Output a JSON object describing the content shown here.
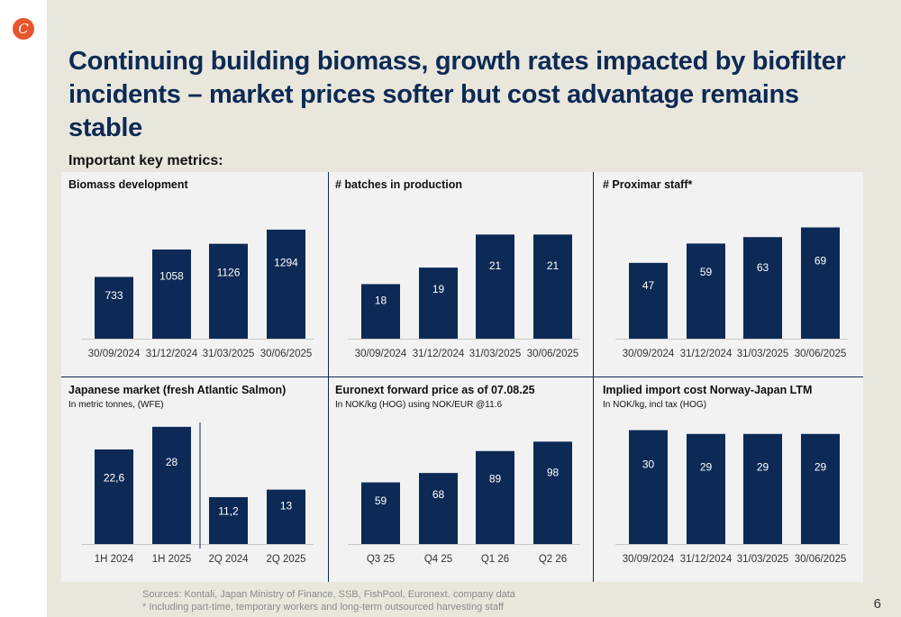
{
  "header": {
    "title_line1": "Continuing building biomass, growth rates impacted by biofilter",
    "title_line2": "incidents – market prices softer but cost advantage remains stable",
    "subheading": "Important key metrics:"
  },
  "footer": {
    "sources": "Sources: Kontali, Japan Ministry of Finance, SSB, FishPool, Euronext. company data",
    "note": "* Including part-time, temporary workers and long-term outsourced harvesting staff",
    "page_number": "6"
  },
  "colors": {
    "bar": "#0c2a55",
    "title": "#0c2a55",
    "logo": "#e8542b"
  },
  "chart_data": [
    {
      "type": "bar",
      "title": "Biomass development",
      "subtitle": "",
      "categories": [
        "30/09/2024",
        "31/12/2024",
        "31/03/2025",
        "30/06/2025"
      ],
      "values": [
        733,
        1058,
        1126,
        1294
      ],
      "labels": [
        "733",
        "1058",
        "1126",
        "1294"
      ],
      "ylim": [
        0,
        1550
      ]
    },
    {
      "type": "bar",
      "title": "# batches in production",
      "subtitle": "",
      "categories": [
        "30/09/2024",
        "31/12/2024",
        "31/03/2025",
        "30/06/2025"
      ],
      "values": [
        18,
        19,
        21,
        21
      ],
      "labels": [
        "18",
        "19",
        "21",
        "21"
      ],
      "ylim": [
        14.7,
        22.6
      ]
    },
    {
      "type": "bar",
      "title": "# Proximar staff*",
      "subtitle": "",
      "categories": [
        "30/09/2024",
        "31/12/2024",
        "31/03/2025",
        "30/06/2025"
      ],
      "values": [
        47,
        59,
        63,
        69
      ],
      "labels": [
        "47",
        "59",
        "63",
        "69"
      ],
      "ylim": [
        0,
        81
      ]
    },
    {
      "type": "bar",
      "title": "Japanese market (fresh Atlantic Salmon)",
      "subtitle": "In metric tonnes, (WFE)",
      "categories": [
        "1H 2024",
        "1H 2025",
        "2Q 2024",
        "2Q 2025"
      ],
      "values": [
        22.6,
        28,
        11.2,
        13
      ],
      "labels": [
        "22,6",
        "28",
        "11,2",
        "13"
      ],
      "ylim": [
        0,
        31.2
      ],
      "separator_after_index": 1
    },
    {
      "type": "bar",
      "title": "Euronext forward price as of 07.08.25",
      "subtitle": "In NOK/kg (HOG) using NOK/EUR @11.6",
      "categories": [
        "Q3 25",
        "Q4 25",
        "Q1 26",
        "Q2 26"
      ],
      "values": [
        59,
        68,
        89,
        98
      ],
      "labels": [
        "59",
        "68",
        "89",
        "98"
      ],
      "ylim": [
        0,
        125
      ]
    },
    {
      "type": "bar",
      "title": "Implied import cost Norway-Japan LTM",
      "subtitle": "In NOK/kg, incl tax (HOG)",
      "categories": [
        "30/09/2024",
        "31/12/2024",
        "31/03/2025",
        "30/06/2025"
      ],
      "values": [
        30,
        29,
        29,
        29
      ],
      "labels": [
        "30",
        "29",
        "29",
        "29"
      ],
      "ylim": [
        0,
        34.4
      ]
    }
  ]
}
